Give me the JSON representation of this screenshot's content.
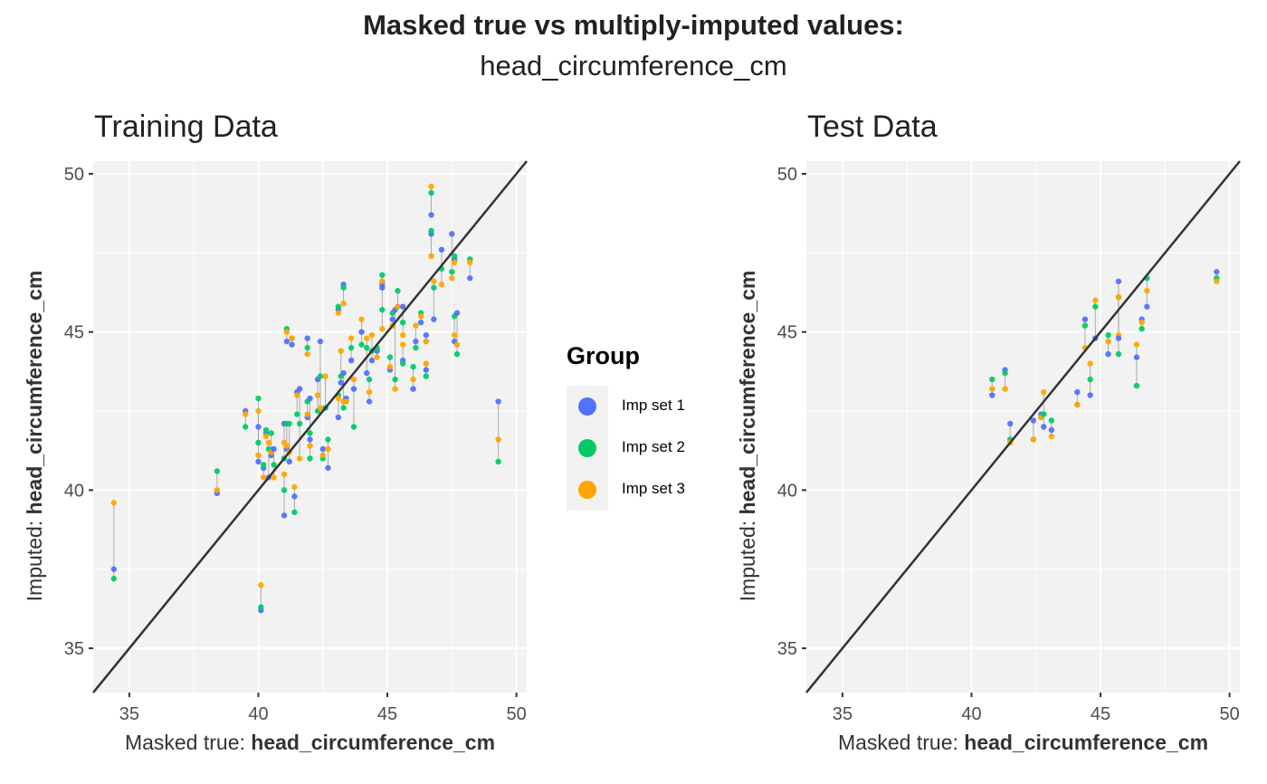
{
  "chart_data": [
    {
      "type": "scatter",
      "panel": "Training Data",
      "title": "Training Data",
      "xlabel_prefix": "Masked true: ",
      "xlabel_var": "head_circumference_cm",
      "ylabel_prefix": "Imputed: ",
      "ylabel_var": "head_circumference_cm",
      "xlim": [
        33.6,
        50.4
      ],
      "ylim": [
        33.6,
        50.4
      ],
      "x_ticks": [
        35,
        40,
        45,
        50
      ],
      "y_ticks": [
        35,
        40,
        45,
        50
      ],
      "grid": true,
      "reference_line": "y = x",
      "series_names": [
        "Imp set 1",
        "Imp set 2",
        "Imp set 3"
      ],
      "points": [
        {
          "x": 34.4,
          "imp": [
            37.5,
            37.2,
            39.6
          ]
        },
        {
          "x": 38.4,
          "imp": [
            39.9,
            40.6,
            40.0
          ]
        },
        {
          "x": 39.5,
          "imp": [
            42.5,
            42.0,
            42.4
          ]
        },
        {
          "x": 40.0,
          "imp": [
            42.0,
            41.5,
            42.5
          ]
        },
        {
          "x": 40.0,
          "imp": [
            40.9,
            42.9,
            41.1
          ]
        },
        {
          "x": 40.1,
          "imp": [
            36.2,
            36.3,
            37.0
          ]
        },
        {
          "x": 40.2,
          "imp": [
            40.7,
            40.8,
            40.4
          ]
        },
        {
          "x": 40.3,
          "imp": [
            41.8,
            41.9,
            41.7
          ]
        },
        {
          "x": 40.4,
          "imp": [
            40.4,
            41.3,
            41.5
          ]
        },
        {
          "x": 40.5,
          "imp": [
            41.1,
            41.8,
            41.2
          ]
        },
        {
          "x": 40.6,
          "imp": [
            41.3,
            40.8,
            40.4
          ]
        },
        {
          "x": 41.0,
          "imp": [
            39.2,
            40.0,
            40.5
          ]
        },
        {
          "x": 41.0,
          "imp": [
            42.1,
            41.0,
            41.5
          ]
        },
        {
          "x": 41.1,
          "imp": [
            44.7,
            45.1,
            45.0
          ]
        },
        {
          "x": 41.1,
          "imp": [
            41.3,
            42.1,
            41.4
          ]
        },
        {
          "x": 41.2,
          "imp": [
            40.9,
            42.1,
            41.2
          ]
        },
        {
          "x": 41.3,
          "imp": [
            44.6,
            44.8,
            44.8
          ]
        },
        {
          "x": 41.4,
          "imp": [
            39.8,
            39.3,
            40.1
          ]
        },
        {
          "x": 41.5,
          "imp": [
            43.1,
            42.4,
            43.0
          ]
        },
        {
          "x": 41.6,
          "imp": [
            43.2,
            42.1,
            41.0
          ]
        },
        {
          "x": 41.9,
          "imp": [
            42.3,
            42.8,
            42.4
          ]
        },
        {
          "x": 41.9,
          "imp": [
            44.8,
            44.5,
            44.3
          ]
        },
        {
          "x": 42.0,
          "imp": [
            41.6,
            41.8,
            41.4
          ]
        },
        {
          "x": 42.0,
          "imp": [
            42.9,
            41.0,
            41.4
          ]
        },
        {
          "x": 42.3,
          "imp": [
            43.5,
            42.5,
            43.0
          ]
        },
        {
          "x": 42.4,
          "imp": [
            44.7,
            43.6,
            42.6
          ]
        },
        {
          "x": 42.5,
          "imp": [
            41.3,
            41.0,
            41.1
          ]
        },
        {
          "x": 42.6,
          "imp": [
            42.6,
            42.6,
            43.6
          ]
        },
        {
          "x": 42.7,
          "imp": [
            40.7,
            41.6,
            41.3
          ]
        },
        {
          "x": 43.1,
          "imp": [
            45.7,
            45.8,
            45.6
          ]
        },
        {
          "x": 43.1,
          "imp": [
            42.3,
            43.0,
            42.9
          ]
        },
        {
          "x": 43.2,
          "imp": [
            43.4,
            43.6,
            44.4
          ]
        },
        {
          "x": 43.3,
          "imp": [
            46.5,
            46.4,
            45.9
          ]
        },
        {
          "x": 43.3,
          "imp": [
            43.7,
            42.6,
            42.8
          ]
        },
        {
          "x": 43.4,
          "imp": [
            42.9,
            42.8,
            42.8
          ]
        },
        {
          "x": 43.6,
          "imp": [
            44.1,
            44.5,
            44.8
          ]
        },
        {
          "x": 43.7,
          "imp": [
            43.2,
            42.0,
            43.5
          ]
        },
        {
          "x": 44.0,
          "imp": [
            45.0,
            44.6,
            45.4
          ]
        },
        {
          "x": 44.2,
          "imp": [
            43.7,
            44.5,
            44.8
          ]
        },
        {
          "x": 44.3,
          "imp": [
            42.8,
            43.5,
            43.1
          ]
        },
        {
          "x": 44.4,
          "imp": [
            44.1,
            44.4,
            44.9
          ]
        },
        {
          "x": 44.6,
          "imp": [
            44.4,
            44.5,
            44.2
          ]
        },
        {
          "x": 44.8,
          "imp": [
            46.5,
            46.8,
            46.6
          ]
        },
        {
          "x": 44.8,
          "imp": [
            46.4,
            45.7,
            45.1
          ]
        },
        {
          "x": 45.1,
          "imp": [
            43.8,
            44.2,
            43.9
          ]
        },
        {
          "x": 45.2,
          "imp": [
            45.4,
            45.6,
            45.2
          ]
        },
        {
          "x": 45.3,
          "imp": [
            45.7,
            43.5,
            43.2
          ]
        },
        {
          "x": 45.4,
          "imp": [
            45.8,
            46.3,
            45.8
          ]
        },
        {
          "x": 45.6,
          "imp": [
            45.8,
            45.3,
            44.9
          ]
        },
        {
          "x": 45.6,
          "imp": [
            44.1,
            44.0,
            44.6
          ]
        },
        {
          "x": 46.0,
          "imp": [
            43.2,
            43.9,
            43.5
          ]
        },
        {
          "x": 46.1,
          "imp": [
            44.7,
            44.5,
            45.2
          ]
        },
        {
          "x": 46.3,
          "imp": [
            45.3,
            45.6,
            45.5
          ]
        },
        {
          "x": 46.5,
          "imp": [
            43.8,
            43.6,
            44.0
          ]
        },
        {
          "x": 46.5,
          "imp": [
            44.9,
            44.7,
            44.7
          ]
        },
        {
          "x": 46.7,
          "imp": [
            48.1,
            48.2,
            47.4
          ]
        },
        {
          "x": 46.8,
          "imp": [
            45.4,
            46.4,
            46.6
          ]
        },
        {
          "x": 47.1,
          "imp": [
            47.6,
            47.0,
            46.5
          ]
        },
        {
          "x": 47.5,
          "imp": [
            48.1,
            46.9,
            46.7
          ]
        },
        {
          "x": 47.6,
          "imp": [
            47.3,
            47.4,
            47.2
          ]
        },
        {
          "x": 47.6,
          "imp": [
            44.7,
            45.5,
            44.9
          ]
        },
        {
          "x": 47.7,
          "imp": [
            45.6,
            44.3,
            44.6
          ]
        },
        {
          "x": 48.2,
          "imp": [
            46.7,
            47.3,
            47.2
          ]
        },
        {
          "x": 49.3,
          "imp": [
            42.8,
            40.9,
            41.6
          ]
        },
        {
          "x": 46.7,
          "imp": [
            48.7,
            49.4,
            49.6
          ]
        }
      ]
    },
    {
      "type": "scatter",
      "panel": "Test Data",
      "title": "Test Data",
      "xlabel_prefix": "Masked true: ",
      "xlabel_var": "head_circumference_cm",
      "ylabel_prefix": "Imputed: ",
      "ylabel_var": "head_circumference_cm",
      "xlim": [
        33.6,
        50.4
      ],
      "ylim": [
        33.6,
        50.4
      ],
      "x_ticks": [
        35,
        40,
        45,
        50
      ],
      "y_ticks": [
        35,
        40,
        45,
        50
      ],
      "grid": true,
      "reference_line": "y = x",
      "series_names": [
        "Imp set 1",
        "Imp set 2",
        "Imp set 3"
      ],
      "points": [
        {
          "x": 40.8,
          "imp": [
            43.0,
            43.5,
            43.2
          ]
        },
        {
          "x": 41.3,
          "imp": [
            43.8,
            43.7,
            43.2
          ]
        },
        {
          "x": 41.5,
          "imp": [
            42.1,
            41.6,
            41.5
          ]
        },
        {
          "x": 42.4,
          "imp": [
            42.2,
            41.6,
            41.6
          ]
        },
        {
          "x": 42.7,
          "imp": [
            42.4,
            42.3,
            42.3
          ]
        },
        {
          "x": 42.8,
          "imp": [
            42.0,
            42.4,
            43.1
          ]
        },
        {
          "x": 43.1,
          "imp": [
            41.9,
            42.2,
            41.7
          ]
        },
        {
          "x": 44.1,
          "imp": [
            43.1,
            42.7,
            42.7
          ]
        },
        {
          "x": 44.4,
          "imp": [
            45.4,
            45.2,
            44.5
          ]
        },
        {
          "x": 44.6,
          "imp": [
            43.0,
            43.5,
            44.0
          ]
        },
        {
          "x": 44.8,
          "imp": [
            44.8,
            45.8,
            46.0
          ]
        },
        {
          "x": 45.3,
          "imp": [
            44.3,
            44.9,
            44.7
          ]
        },
        {
          "x": 45.7,
          "imp": [
            46.6,
            44.3,
            44.9
          ]
        },
        {
          "x": 45.7,
          "imp": [
            44.8,
            46.1,
            46.1
          ]
        },
        {
          "x": 46.4,
          "imp": [
            44.2,
            43.3,
            44.6
          ]
        },
        {
          "x": 46.6,
          "imp": [
            45.4,
            45.1,
            45.3
          ]
        },
        {
          "x": 46.8,
          "imp": [
            45.8,
            46.7,
            46.3
          ]
        },
        {
          "x": 49.5,
          "imp": [
            46.9,
            46.7,
            46.6
          ]
        }
      ]
    }
  ],
  "header": {
    "title": "Masked true vs multiply-imputed values:",
    "subtitle": "head_circumference_cm"
  },
  "legend": {
    "title": "Group",
    "items": [
      {
        "label": "Imp set 1",
        "color": "#5271ff"
      },
      {
        "label": "Imp set 2",
        "color": "#00cc66"
      },
      {
        "label": "Imp set 3",
        "color": "#ffa500"
      }
    ]
  },
  "colors": {
    "panel_bg": "#f2f2f2",
    "grid": "#ffffff",
    "reference_line": "#333333",
    "connector": "#999999"
  }
}
